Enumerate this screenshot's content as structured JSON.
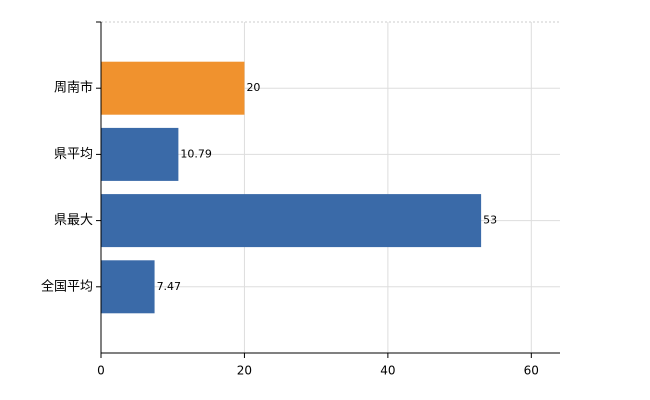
{
  "chart_data": {
    "type": "bar",
    "orientation": "horizontal",
    "categories": [
      "周南市",
      "県平均",
      "県最大",
      "全国平均"
    ],
    "values": [
      20,
      10.79,
      53,
      7.47
    ],
    "colors": [
      "#f0922e",
      "#3a6aa8",
      "#3a6aa8",
      "#3a6aa8"
    ],
    "xlim": [
      0,
      64
    ],
    "xticks": [
      0,
      20,
      40,
      60
    ],
    "grid": true
  }
}
